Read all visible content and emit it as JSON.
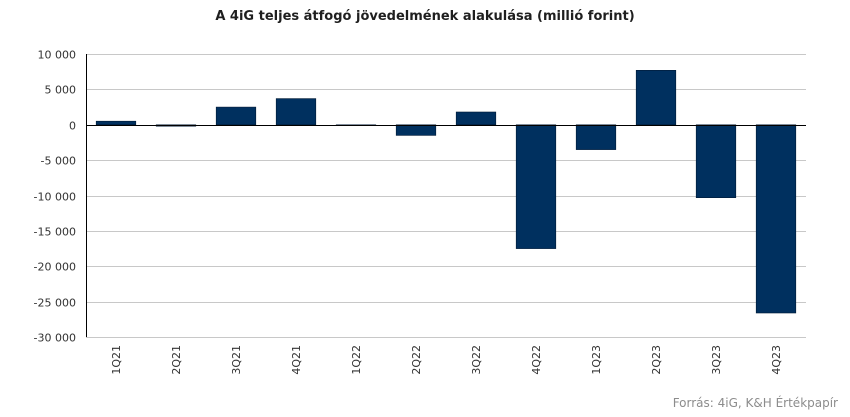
{
  "chart_data": {
    "type": "bar",
    "title": "A 4iG teljes átfogó jövedelmének alakulása (millió forint)",
    "xlabel": "",
    "ylabel": "",
    "categories": [
      "1Q21",
      "2Q21",
      "3Q21",
      "4Q21",
      "1Q22",
      "2Q22",
      "3Q22",
      "4Q22",
      "1Q23",
      "2Q23",
      "3Q23",
      "4Q23"
    ],
    "series": [
      {
        "values": [
          500,
          -200,
          2500,
          3700,
          0,
          -1500,
          1800,
          -17500,
          -3500,
          7700,
          -10300,
          -26600
        ],
        "color": "#00305f"
      }
    ],
    "ylim": [
      -30000,
      10000
    ],
    "yticks": [
      10000,
      5000,
      0,
      -5000,
      -10000,
      -15000,
      -20000,
      -25000,
      -30000
    ],
    "ytick_labels": [
      "10 000",
      "5 000",
      "0",
      "-5 000",
      "-10 000",
      "-15 000",
      "-20 000",
      "-25 000",
      "-30 000"
    ],
    "grid": true,
    "legend": "none"
  },
  "source": "Forrás: 4iG, K&H Értékpapír"
}
